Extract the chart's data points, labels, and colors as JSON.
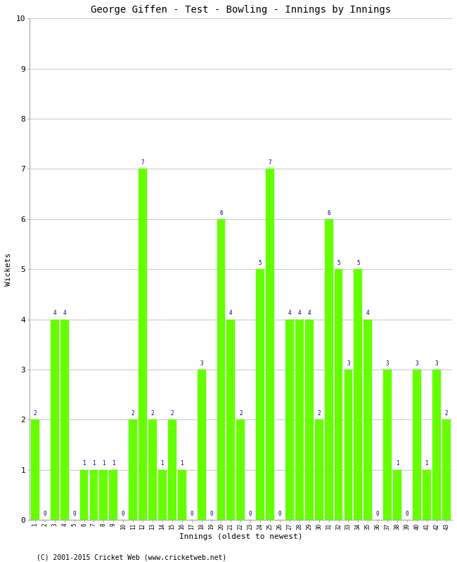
{
  "title": "George Giffen - Test - Bowling - Innings by Innings",
  "xlabel": "Innings (oldest to newest)",
  "ylabel": "Wickets",
  "footnote": "(C) 2001-2015 Cricket Web (www.cricketweb.net)",
  "ylim": [
    0,
    10
  ],
  "yticks": [
    0,
    1,
    2,
    3,
    4,
    5,
    6,
    7,
    8,
    9,
    10
  ],
  "bar_color": "#66ff00",
  "label_color": "#000080",
  "innings": [
    1,
    2,
    3,
    4,
    5,
    6,
    7,
    8,
    9,
    10,
    11,
    12,
    13,
    14,
    15,
    16,
    17,
    18,
    19,
    20,
    21,
    22,
    23,
    24,
    25,
    26,
    27,
    28,
    29,
    30,
    31,
    32,
    33,
    34,
    35,
    36,
    37,
    38,
    39,
    40,
    41,
    42,
    43
  ],
  "wickets": [
    2,
    0,
    4,
    4,
    0,
    1,
    1,
    1,
    1,
    0,
    2,
    7,
    2,
    1,
    2,
    1,
    0,
    3,
    0,
    6,
    4,
    2,
    0,
    5,
    7,
    0,
    4,
    4,
    4,
    2,
    6,
    5,
    3,
    5,
    4,
    0,
    3,
    1,
    0,
    3,
    1,
    3,
    2
  ]
}
